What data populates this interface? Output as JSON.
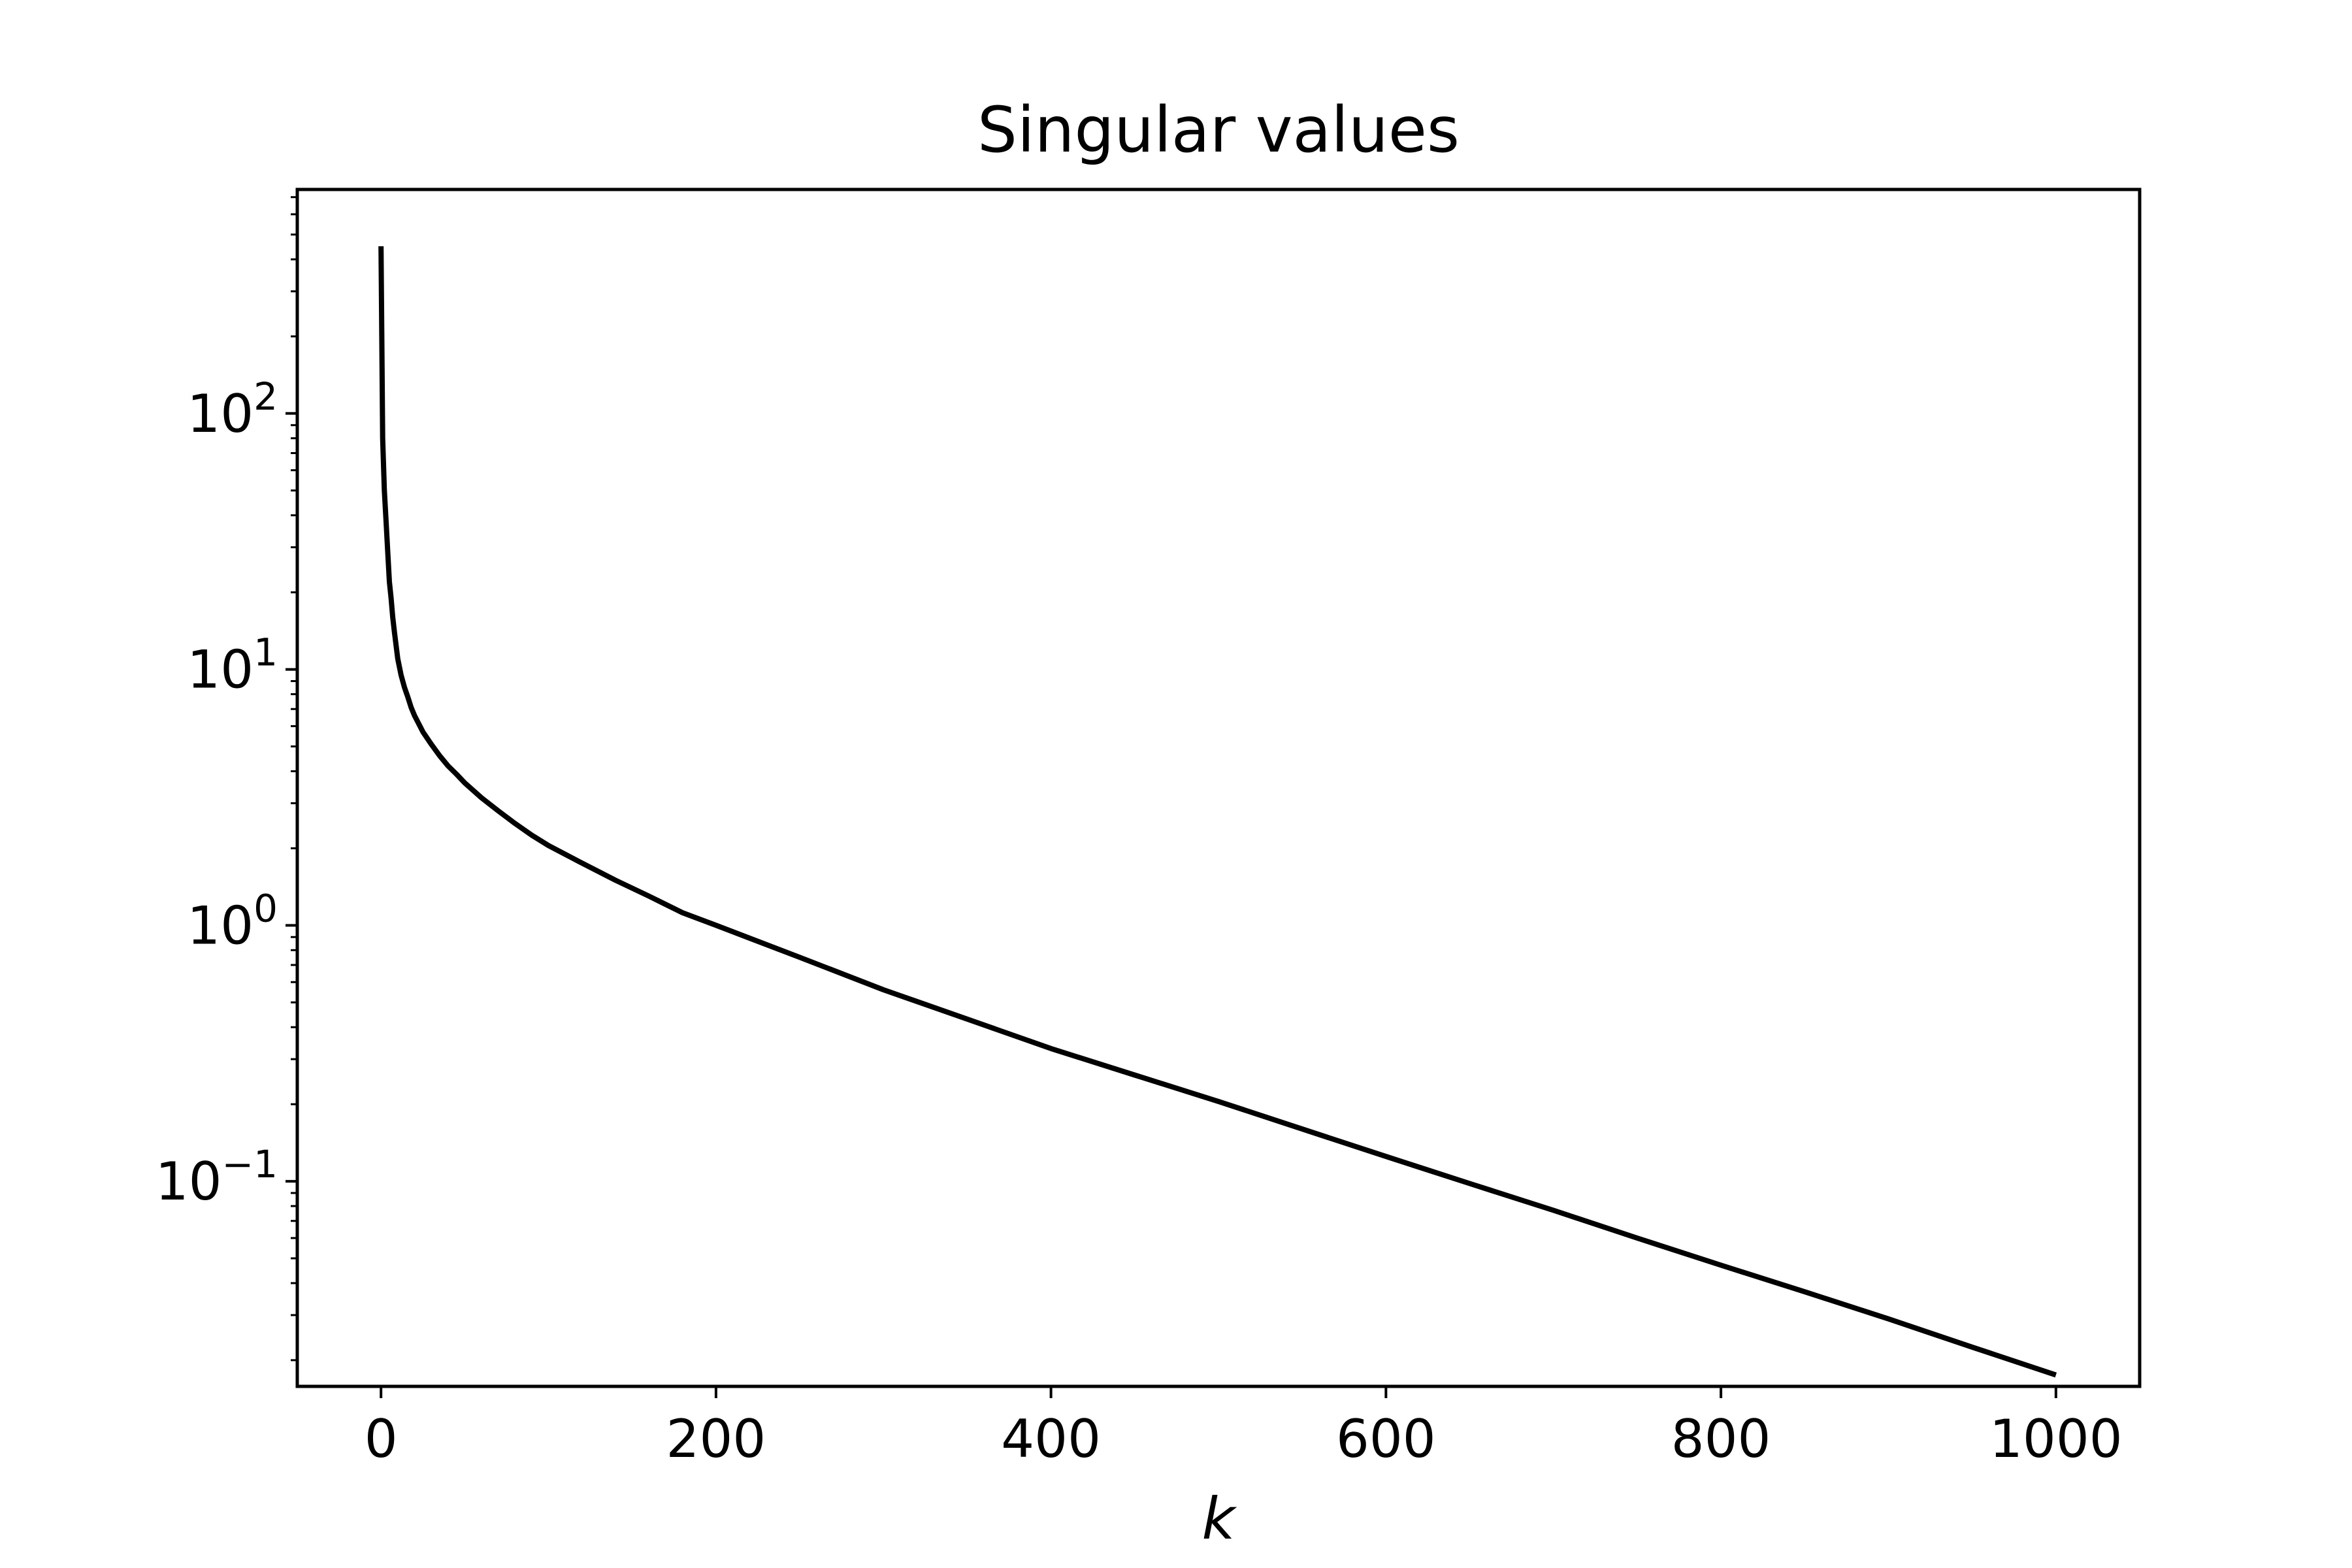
{
  "chart_data": {
    "type": "line",
    "title": "Singular values",
    "xlabel": "k",
    "ylabel": "",
    "yscale": "log",
    "xlim": [
      -50,
      1050
    ],
    "ylim": [
      0.0158,
      750
    ],
    "grid": false,
    "line_color": "#000000",
    "xticks": [
      {
        "value": 0,
        "label": "0"
      },
      {
        "value": 200,
        "label": "200"
      },
      {
        "value": 400,
        "label": "400"
      },
      {
        "value": 600,
        "label": "600"
      },
      {
        "value": 800,
        "label": "800"
      },
      {
        "value": 1000,
        "label": "1000"
      }
    ],
    "yticks": [
      {
        "value": 100,
        "base": "10",
        "exp": "2"
      },
      {
        "value": 10,
        "base": "10",
        "exp": "1"
      },
      {
        "value": 1,
        "base": "10",
        "exp": "0"
      },
      {
        "value": 0.1,
        "base": "10",
        "exp": "−1"
      }
    ],
    "series": [
      {
        "x": [
          0,
          1,
          2,
          3,
          4,
          5,
          6,
          7,
          8,
          10,
          12,
          14,
          16,
          18,
          20,
          25,
          30,
          35,
          40,
          45,
          50,
          60,
          70,
          80,
          90,
          100,
          120,
          140,
          160,
          180,
          200,
          250,
          300,
          350,
          400,
          450,
          500,
          550,
          600,
          650,
          700,
          750,
          800,
          850,
          900,
          950,
          1000
        ],
        "y": [
          450,
          80,
          50,
          38,
          29,
          22,
          19,
          16,
          14,
          11,
          9.5,
          8.5,
          7.8,
          7.1,
          6.6,
          5.7,
          5.1,
          4.6,
          4.2,
          3.9,
          3.6,
          3.15,
          2.8,
          2.5,
          2.25,
          2.05,
          1.75,
          1.5,
          1.3,
          1.12,
          1.0,
          0.75,
          0.56,
          0.43,
          0.33,
          0.26,
          0.205,
          0.16,
          0.125,
          0.098,
          0.077,
          0.06,
          0.047,
          0.037,
          0.029,
          0.0225,
          0.0175
        ]
      }
    ]
  }
}
